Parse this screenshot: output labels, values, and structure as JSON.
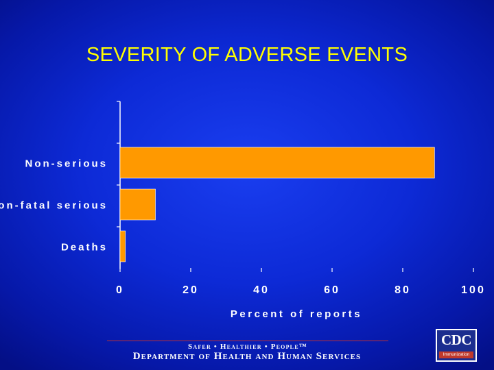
{
  "slide": {
    "title": "SEVERITY OF ADVERSE EVENTS"
  },
  "chart_data": {
    "type": "bar",
    "orientation": "horizontal",
    "title": "SEVERITY OF ADVERSE EVENTS",
    "categories": [
      "Non-serious",
      "Non-fatal serious",
      "Deaths"
    ],
    "values": [
      89,
      10,
      1.5
    ],
    "xlabel": "Percent of reports",
    "ylabel": "",
    "xlim": [
      0,
      100
    ],
    "xticks": [
      "0",
      "20",
      "40",
      "60",
      "80",
      "100"
    ],
    "bar_color": "#ff9900",
    "grid": false,
    "legend": "none"
  },
  "footer": {
    "tagline": "Safer • Healthier • People™",
    "department": "Department of Health and Human Services",
    "logo_text": "CDC",
    "logo_subtext": "Immunization"
  },
  "colors": {
    "title": "#ffff00",
    "text": "#ffffff",
    "bar": "#ff9900",
    "logo_bar": "#c0392b"
  }
}
